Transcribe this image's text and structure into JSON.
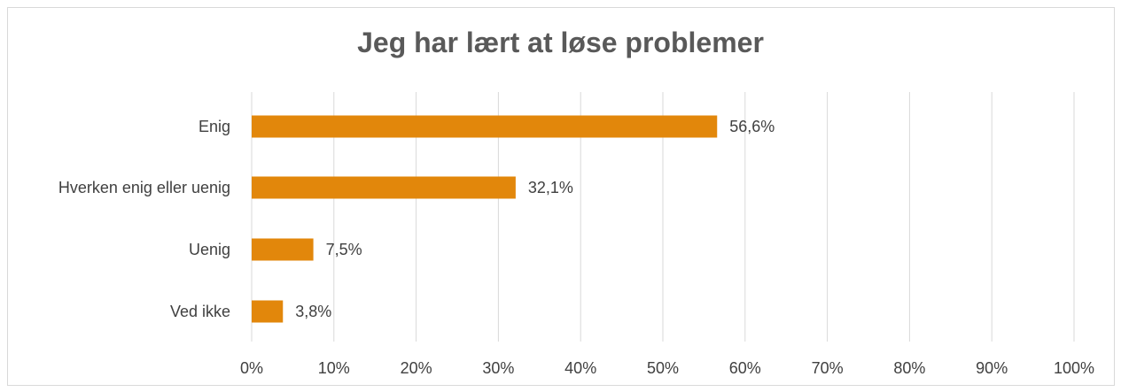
{
  "chart_data": {
    "type": "bar",
    "orientation": "horizontal",
    "title": "Jeg har lært at løse problemer",
    "categories": [
      "Enig",
      "Hverken enig eller uenig",
      "Uenig",
      "Ved ikke"
    ],
    "values": [
      56.6,
      32.1,
      7.5,
      3.8
    ],
    "data_labels": [
      "56,6%",
      "32,1%",
      "7,5%",
      "3,8%"
    ],
    "x_ticks": [
      0,
      10,
      20,
      30,
      40,
      50,
      60,
      70,
      80,
      90,
      100
    ],
    "x_tick_labels": [
      "0%",
      "10%",
      "20%",
      "30%",
      "40%",
      "50%",
      "60%",
      "70%",
      "80%",
      "90%",
      "100%"
    ],
    "xlim": [
      0,
      100
    ],
    "xlabel": "",
    "ylabel": "",
    "grid": true,
    "legend": "none",
    "bar_color": "#E2870B",
    "grid_color": "#d9d9d9"
  }
}
